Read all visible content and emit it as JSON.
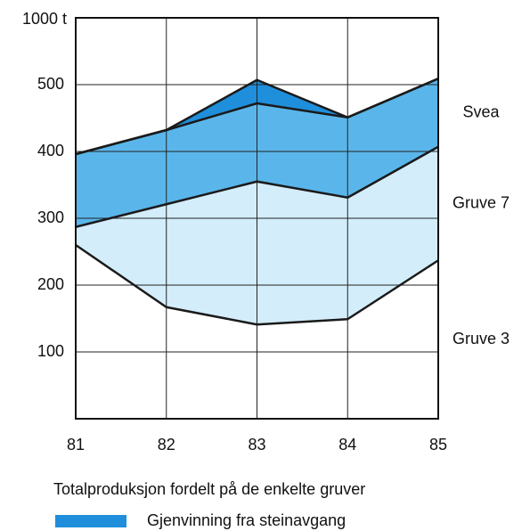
{
  "chart_data": {
    "type": "stacked_area",
    "y_unit_label": "1000 t",
    "caption": "Totalproduksjon fordelt på de enkelte gruver",
    "x": [
      81,
      82,
      83,
      84,
      85
    ],
    "xlim": [
      81,
      85
    ],
    "xticks": [
      81,
      82,
      83,
      84,
      85
    ],
    "ylim": [
      0,
      600
    ],
    "yticks": [
      100,
      200,
      300,
      400,
      500
    ],
    "grid": true,
    "series": [
      {
        "name": "Gruve 3",
        "color": "#ffffff",
        "values": [
          260,
          167,
          141,
          149,
          237
        ],
        "legend": false
      },
      {
        "name": "Gruve 7",
        "color": "#d3edfb",
        "values": [
          27,
          154,
          214,
          182,
          170
        ],
        "legend": false
      },
      {
        "name": "Svea",
        "color": "#5ab6ea",
        "values": [
          109,
          111,
          117,
          120,
          102
        ],
        "legend": false
      },
      {
        "name": "Gjenvinning fra steinavgang",
        "color": "#1f8fdb",
        "values": [
          0,
          0,
          35,
          0,
          0
        ],
        "legend": true
      }
    ]
  }
}
